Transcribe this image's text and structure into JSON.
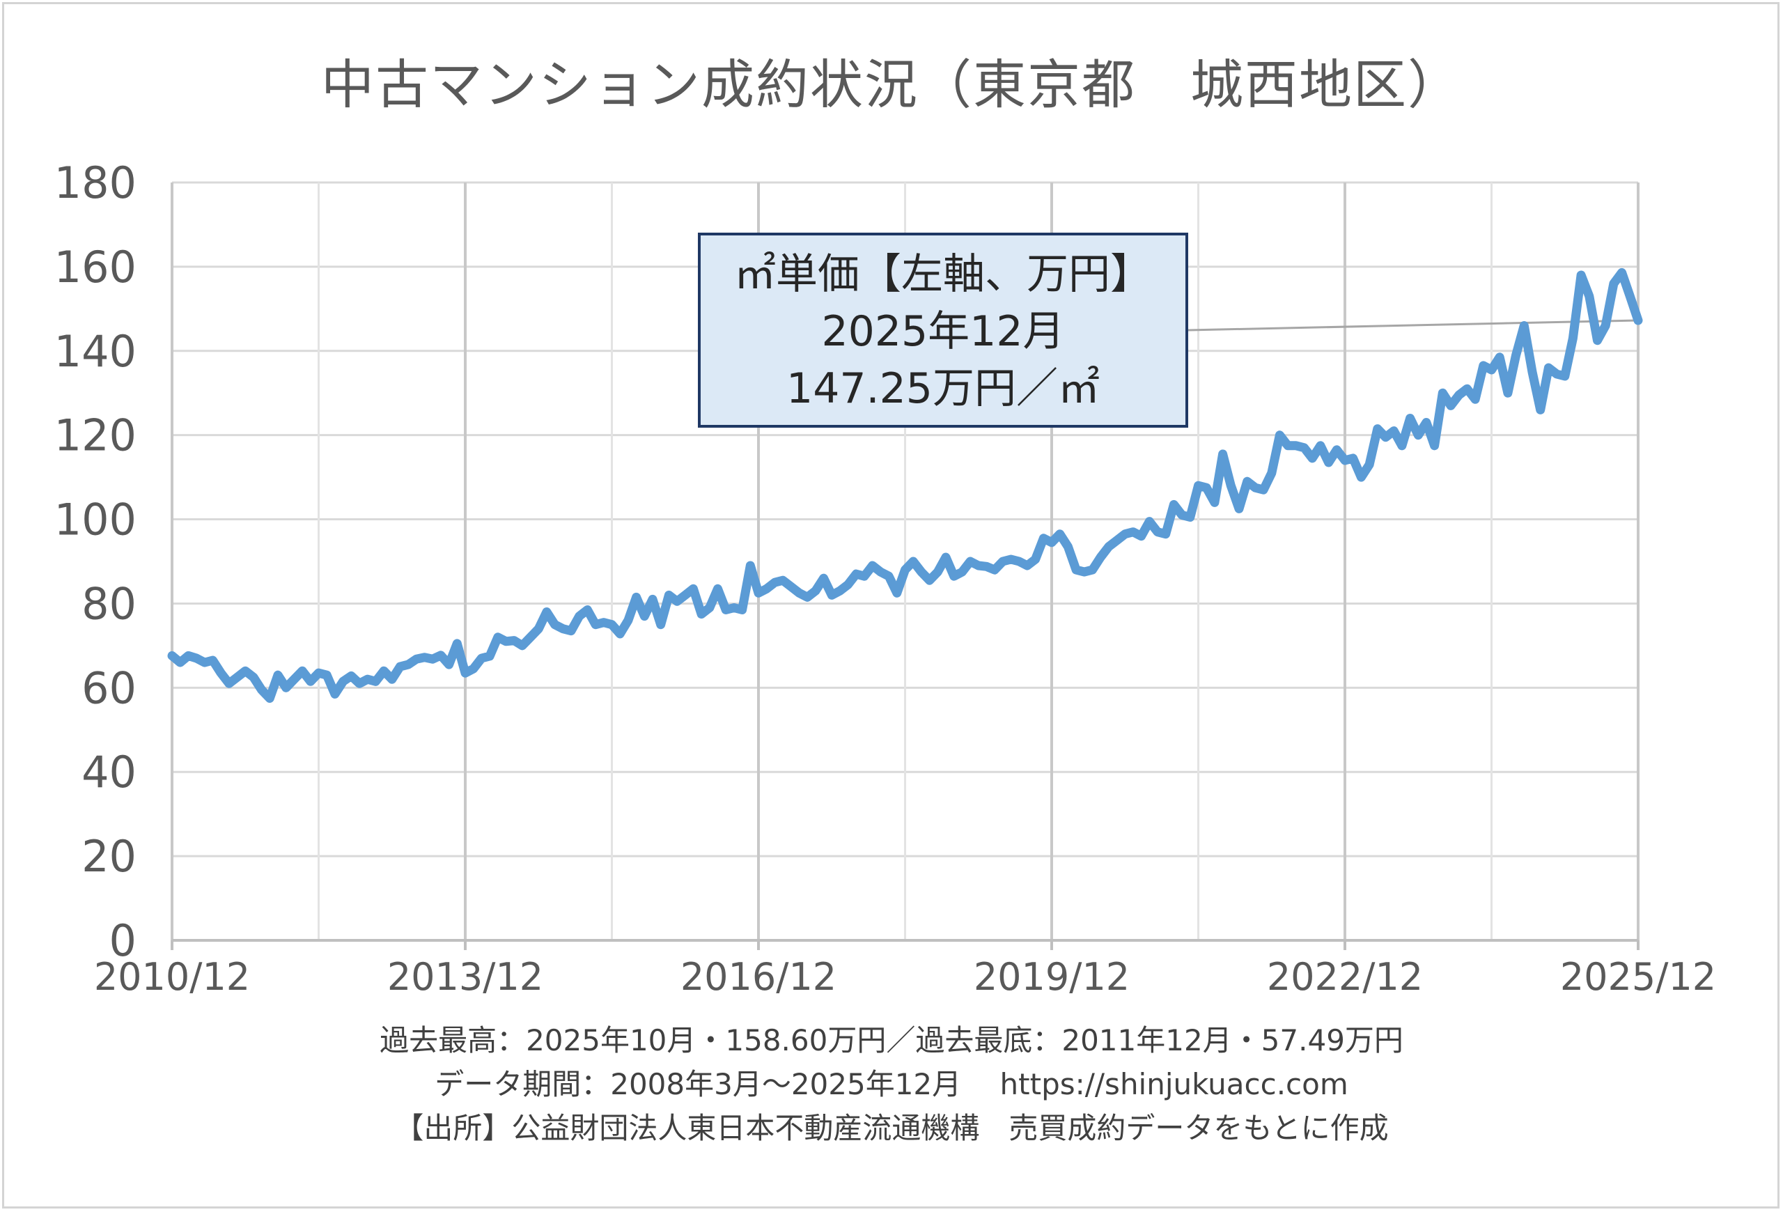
{
  "title": "中古マンション成約状況（東京都　城西地区）",
  "chart_data": {
    "type": "line",
    "title": "中古マンション成約状況（東京都　城西地区）",
    "xlabel": "",
    "ylabel": "",
    "ylim": [
      0,
      180
    ],
    "yticks": [
      "0",
      "20",
      "40",
      "60",
      "80",
      "100",
      "120",
      "140",
      "160",
      "180"
    ],
    "xticks": [
      "2010/12",
      "2013/12",
      "2016/12",
      "2019/12",
      "2022/12",
      "2025/12"
    ],
    "x_start": "2010/12",
    "x_end": "2025/12",
    "grid": true,
    "series": [
      {
        "name": "㎡単価【左軸、万円】",
        "color": "#5b9bd5",
        "values": [
          67.6,
          66.0,
          67.6,
          67.0,
          66.0,
          66.5,
          63.5,
          61.0,
          62.5,
          64.0,
          62.5,
          59.5,
          57.49,
          63.0,
          60.0,
          62.0,
          64.0,
          61.5,
          63.5,
          63.0,
          58.5,
          61.5,
          62.8,
          61.0,
          62.0,
          61.5,
          64.0,
          62.0,
          65.0,
          65.5,
          66.8,
          67.2,
          66.8,
          67.7,
          65.5,
          70.5,
          63.5,
          64.5,
          67.0,
          67.5,
          72.0,
          71.0,
          71.2,
          70.0,
          72.0,
          74.0,
          78.0,
          75.0,
          74.0,
          73.5,
          77.0,
          78.5,
          75.0,
          75.5,
          75.0,
          72.8,
          76.0,
          81.5,
          77.0,
          81.0,
          75.0,
          82.0,
          80.5,
          82.0,
          83.5,
          77.5,
          79.0,
          83.5,
          78.5,
          79.0,
          78.5,
          89.0,
          82.5,
          83.5,
          85.0,
          85.5,
          84.0,
          82.5,
          81.5,
          83.0,
          86.0,
          82.0,
          83.0,
          84.5,
          87.0,
          86.5,
          89.0,
          87.5,
          86.5,
          82.5,
          88.0,
          90.0,
          87.5,
          85.5,
          87.5,
          91.0,
          86.5,
          87.5,
          90.0,
          89.0,
          88.8,
          88.0,
          90.0,
          90.5,
          90.0,
          89.0,
          90.5,
          95.5,
          94.5,
          96.5,
          93.5,
          88.0,
          87.5,
          88.0,
          91.0,
          93.5,
          95.0,
          96.5,
          97.0,
          96.0,
          99.5,
          97.0,
          96.5,
          103.5,
          101.0,
          100.5,
          108.0,
          107.5,
          104.0,
          115.5,
          108.0,
          102.5,
          109.0,
          107.5,
          107.0,
          111.0,
          120.0,
          117.5,
          117.5,
          117.0,
          114.5,
          117.5,
          113.5,
          116.5,
          114.0,
          114.5,
          110.0,
          113.0,
          121.5,
          119.5,
          121.0,
          117.5,
          124.0,
          120.0,
          123.0,
          117.5,
          130.0,
          127.0,
          129.5,
          131.0,
          128.5,
          136.5,
          135.5,
          138.5,
          130.0,
          139.0,
          146.0,
          135.0,
          126.0,
          136.0,
          134.5,
          134.0,
          143.0,
          158.0,
          153.0,
          142.5,
          146.0,
          156.0,
          158.6,
          153.0,
          147.25
        ]
      }
    ],
    "callout": {
      "series_label": "㎡単価【左軸、万円】",
      "date": "2025年12月",
      "value_text": "147.25万円／㎡",
      "value": 147.25
    }
  },
  "footer": {
    "line1": "過去最高：2025年10月・158.60万円／過去最底：2011年12月・57.49万円",
    "line2": "データ期間：2008年3月～2025年12月　 https://shinjukuacc.com",
    "line3": "【出所】公益財団法人東日本不動産流通機構　売買成約データをもとに作成"
  }
}
